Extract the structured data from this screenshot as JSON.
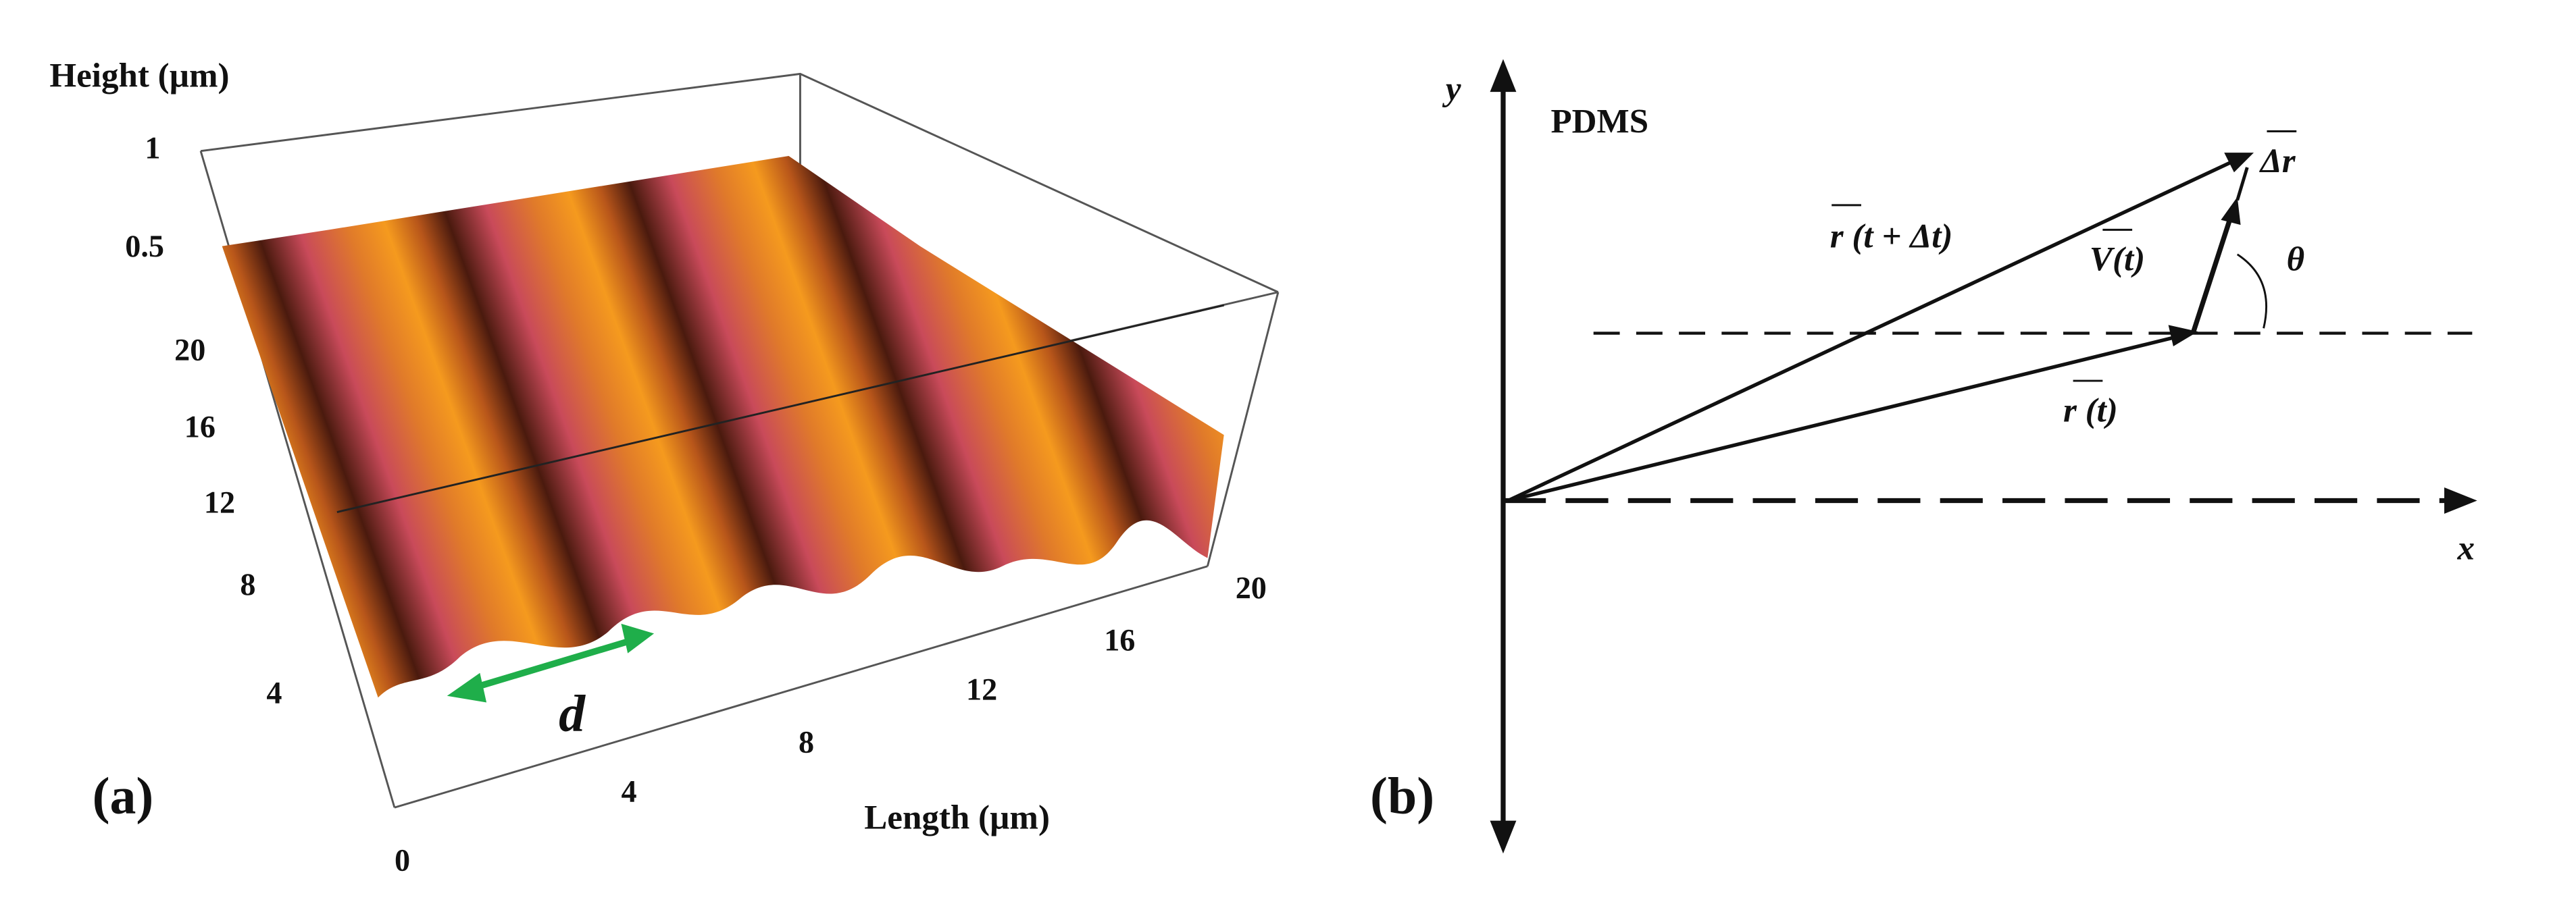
{
  "panel_a": {
    "label": "(a)",
    "height_axis_label": "Height (µm)",
    "height_ticks": [
      "1",
      "0.5"
    ],
    "width_ticks": [
      "20",
      "16",
      "12",
      "8",
      "4"
    ],
    "length_axis_label": "Length (µm)",
    "length_ticks": [
      "0",
      "4",
      "8",
      "12",
      "16",
      "20"
    ],
    "annotation": "d"
  },
  "panel_b": {
    "label": "(b)",
    "material": "PDMS",
    "x_axis": "x",
    "y_axis": "y",
    "vector_r_t_dt": "r (t + Δt)",
    "vector_r_t": "r (t)",
    "vector_v": "V(t)",
    "vector_dr": "Δr",
    "angle": "θ"
  }
}
